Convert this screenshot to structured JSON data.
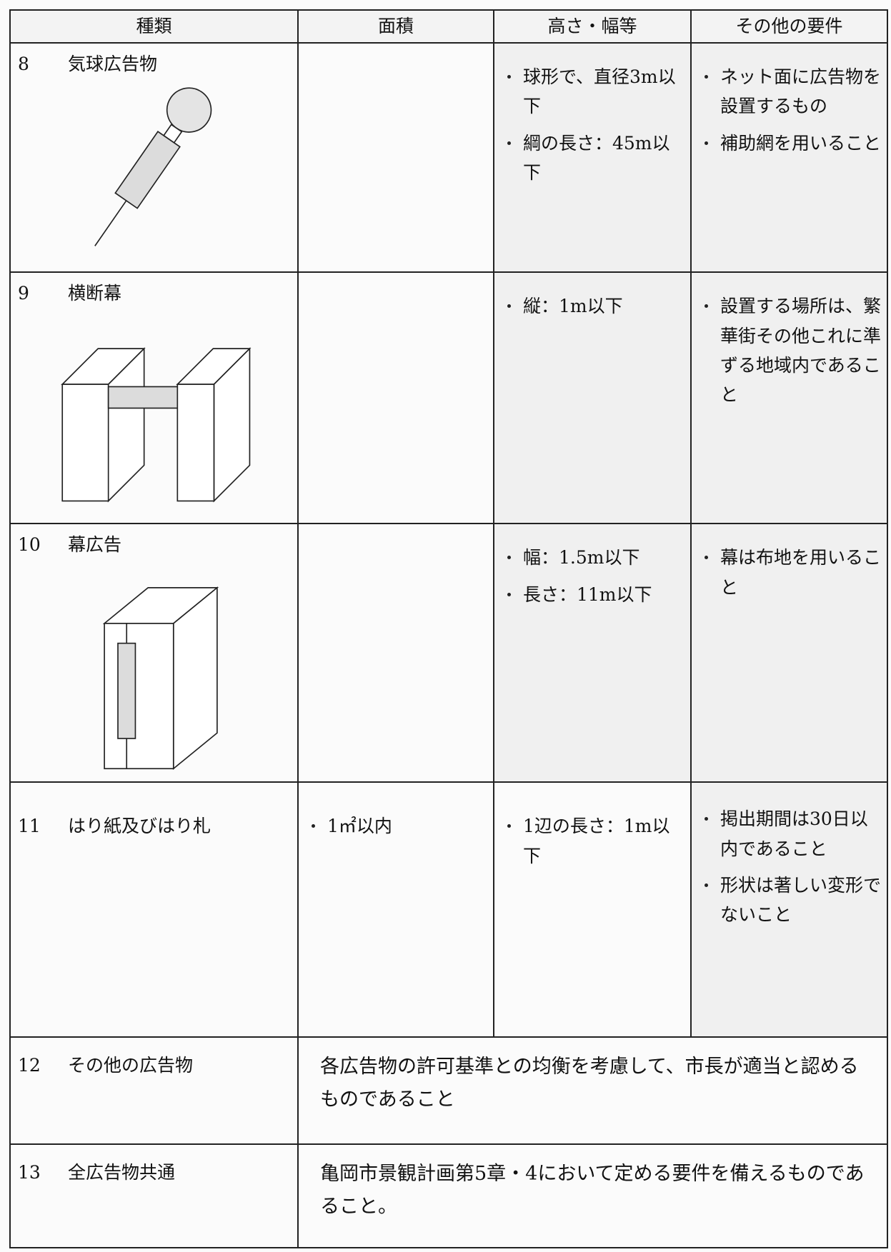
{
  "table": {
    "header": [
      "種類",
      "面積",
      "高さ・幅等",
      "その他の要件"
    ],
    "rows": [
      {
        "number": "8",
        "name": "気球広告物",
        "size": [
          "球形で、直径3m以下",
          "綱の長さ：45m以下"
        ],
        "other": [
          "ネット面に広告物を設置するもの",
          "補助網を用いること"
        ]
      },
      {
        "number": "9",
        "name": "横断幕",
        "size": [
          "縦：1m以下"
        ],
        "other": [
          "設置する場所は、繁華街その他これに準ずる地域内であること"
        ]
      },
      {
        "number": "10",
        "name": "幕広告",
        "size": [
          "幅：1.5m以下",
          "長さ：11m以下"
        ],
        "other": [
          "幕は布地を用いること"
        ]
      },
      {
        "number": "11",
        "name": "はり紙及びはり札",
        "area": [
          "1㎡以内"
        ],
        "size": [
          "1辺の長さ：1m以下"
        ],
        "other": [
          "掲出期間は30日以内であること",
          "形状は著しい変形でないこと"
        ]
      },
      {
        "number": "12",
        "name": "その他の広告物",
        "note": "各広告物の許可基準との均衡を考慮して、市長が適当と認めるものであること"
      },
      {
        "number": "13",
        "name": "全広告物共通",
        "note": "亀岡市景観計画第5章・4において定める要件を備えるものであること。"
      }
    ]
  }
}
